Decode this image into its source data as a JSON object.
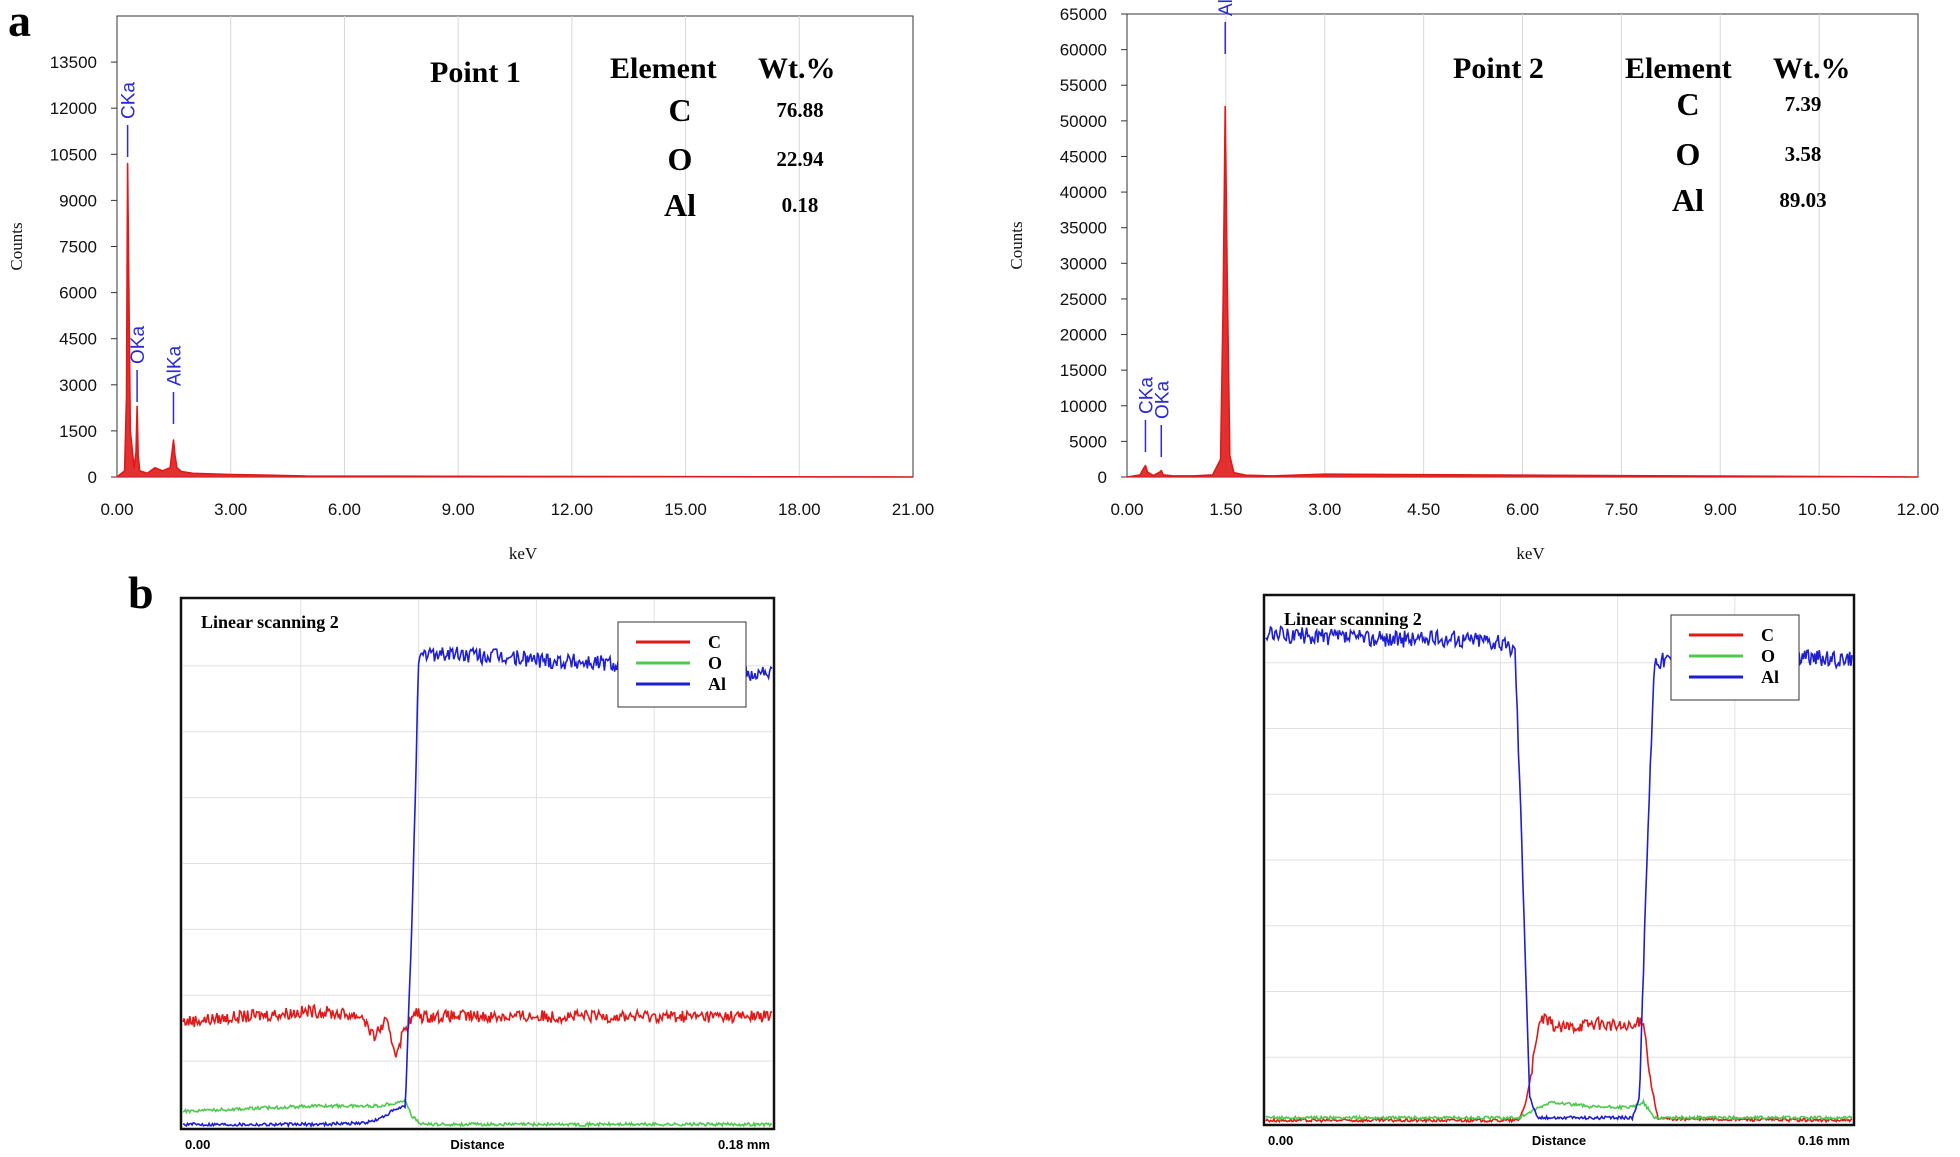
{
  "panel_labels": {
    "a": "a",
    "b": "b"
  },
  "chart_data": [
    {
      "type": "line",
      "id": "spectrum-point-1",
      "xlabel": "keV",
      "ylabel": "Counts",
      "xlim": [
        0,
        21
      ],
      "ylim": [
        0,
        15000
      ],
      "xticks": [
        "0.00",
        "3.00",
        "6.00",
        "9.00",
        "12.00",
        "15.00",
        "18.00",
        "21.00"
      ],
      "yticks": [
        "0",
        "1500",
        "3000",
        "4500",
        "6000",
        "7500",
        "9000",
        "10500",
        "12000",
        "13500"
      ],
      "grid": true,
      "series": [
        {
          "color": "#e01919",
          "x": [
            0,
            0.2,
            0.25,
            0.28,
            0.31,
            0.35,
            0.45,
            0.5,
            0.53,
            0.56,
            0.6,
            0.8,
            1.0,
            1.2,
            1.4,
            1.45,
            1.49,
            1.53,
            1.58,
            1.7,
            2.0,
            2.5,
            3.0,
            4.0,
            5.0,
            21.0
          ],
          "y": [
            0,
            200,
            2600,
            10200,
            6300,
            1500,
            300,
            800,
            2300,
            700,
            200,
            120,
            300,
            200,
            300,
            800,
            1200,
            700,
            300,
            180,
            120,
            100,
            80,
            60,
            30,
            0
          ]
        }
      ],
      "peak_labels": [
        {
          "label": "CKa",
          "x": 0.28
        },
        {
          "label": "OKa",
          "x": 0.53
        },
        {
          "label": "AlKa",
          "x": 1.49
        }
      ],
      "annotation": {
        "title": "Point 1",
        "header_element": "Element",
        "header_wt": "Wt.%",
        "rows": [
          {
            "element": "C",
            "wt": "76.88"
          },
          {
            "element": "O",
            "wt": "22.94"
          },
          {
            "element": "Al",
            "wt": "0.18"
          }
        ]
      }
    },
    {
      "type": "line",
      "id": "spectrum-point-2",
      "xlabel": "keV",
      "ylabel": "Counts",
      "xlim": [
        0,
        12
      ],
      "ylim": [
        0,
        65000
      ],
      "xticks": [
        "0.00",
        "1.50",
        "3.00",
        "4.50",
        "6.00",
        "7.50",
        "9.00",
        "10.50",
        "12.00"
      ],
      "yticks": [
        "0",
        "5000",
        "10000",
        "15000",
        "20000",
        "25000",
        "30000",
        "35000",
        "40000",
        "45000",
        "50000",
        "55000",
        "60000",
        "65000"
      ],
      "grid": true,
      "series": [
        {
          "color": "#e01919",
          "x": [
            0,
            0.2,
            0.25,
            0.28,
            0.31,
            0.4,
            0.5,
            0.52,
            0.55,
            0.7,
            1.0,
            1.3,
            1.42,
            1.46,
            1.49,
            1.52,
            1.56,
            1.62,
            1.8,
            2.2,
            3.0,
            12.0
          ],
          "y": [
            0,
            300,
            1200,
            1600,
            700,
            200,
            700,
            900,
            300,
            150,
            150,
            300,
            2500,
            25000,
            52000,
            28000,
            3000,
            600,
            250,
            150,
            400,
            0
          ]
        }
      ],
      "peak_labels": [
        {
          "label": "CKa",
          "x": 0.28
        },
        {
          "label": "OKa",
          "x": 0.52
        },
        {
          "label": "AlKa",
          "x": 1.49
        }
      ],
      "annotation": {
        "title": "Point 2",
        "header_element": "Element",
        "header_wt": "Wt.%",
        "rows": [
          {
            "element": "C",
            "wt": "7.39"
          },
          {
            "element": "O",
            "wt": "3.58"
          },
          {
            "element": "Al",
            "wt": "89.03"
          }
        ]
      }
    },
    {
      "type": "line",
      "id": "linescan-1",
      "title": "Linear scanning 2",
      "xlabel": "Distance",
      "xtick_left": "0.00",
      "xtick_right": "0.18 mm",
      "xlim": [
        0,
        0.18
      ],
      "ylim": [
        0,
        100
      ],
      "grid": true,
      "legend_position": "top-right",
      "series": [
        {
          "name": "C",
          "color": "#e01919",
          "x": [
            0,
            0.02,
            0.04,
            0.055,
            0.058,
            0.062,
            0.065,
            0.068,
            0.072,
            0.066,
            0.067
          ],
          "y": [
            20,
            21,
            22,
            21,
            17,
            20,
            14,
            19,
            22,
            21,
            21
          ]
        },
        {
          "name": "O",
          "color": "#4ec94e",
          "x": [
            0,
            0.02,
            0.04,
            0.06,
            0.068,
            0.07,
            0.073,
            0.18
          ],
          "y": [
            3,
            3.5,
            4,
            4,
            5,
            2,
            0.5,
            0.5
          ]
        },
        {
          "name": "Al",
          "color": "#1e1ed2",
          "x": [
            0,
            0.04,
            0.056,
            0.06,
            0.064,
            0.068,
            0.07,
            0.072,
            0.075,
            0.1,
            0.13,
            0.15,
            0.18
          ],
          "y": [
            0.5,
            0.5,
            0.8,
            1.5,
            3,
            4,
            40,
            88,
            90,
            89,
            88,
            87,
            86
          ]
        }
      ]
    },
    {
      "type": "line",
      "id": "linescan-2",
      "title": "Linear scanning 2",
      "xlabel": "Distance",
      "xtick_left": "0.00",
      "xtick_right": "0.16 mm",
      "xlim": [
        0,
        0.16
      ],
      "ylim": [
        0,
        100
      ],
      "grid": true,
      "legend_position": "top-right",
      "series": [
        {
          "name": "C",
          "color": "#e01919",
          "x": [
            0,
            0.069,
            0.071,
            0.073,
            0.075,
            0.08,
            0.09,
            0.1,
            0.103,
            0.105,
            0.107,
            0.16
          ],
          "y": [
            0.5,
            0.5,
            4,
            12,
            20,
            18,
            19,
            18,
            20,
            8,
            0.8,
            0.5
          ]
        },
        {
          "name": "O",
          "color": "#4ec94e",
          "x": [
            0,
            0.069,
            0.072,
            0.078,
            0.09,
            0.1,
            0.103,
            0.106,
            0.16
          ],
          "y": [
            1,
            1,
            2,
            4,
            3,
            3,
            4,
            1,
            1
          ]
        },
        {
          "name": "Al",
          "color": "#1e1ed2",
          "x": [
            0,
            0.03,
            0.06,
            0.068,
            0.07,
            0.072,
            0.074,
            0.09,
            0.1,
            0.102,
            0.104,
            0.106,
            0.13,
            0.16
          ],
          "y": [
            93,
            92,
            92,
            90,
            50,
            5,
            1,
            1,
            1,
            5,
            50,
            88,
            89,
            88
          ]
        }
      ]
    }
  ]
}
